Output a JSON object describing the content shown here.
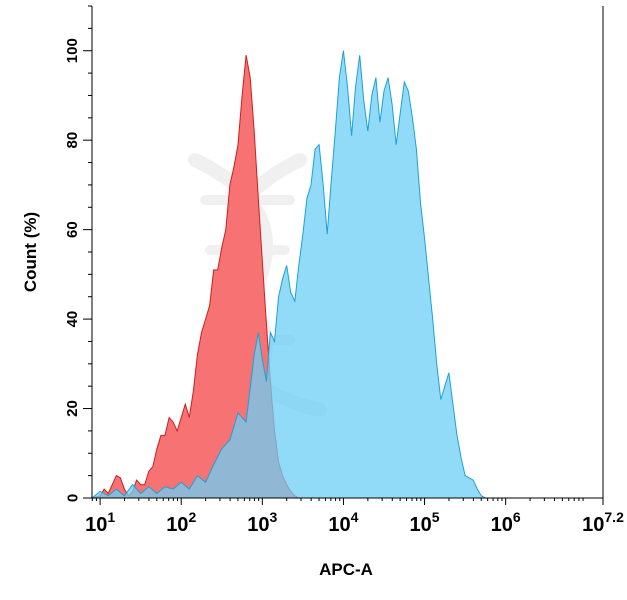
{
  "chart_data": {
    "type": "area",
    "title": "",
    "xlabel": "APC-A",
    "ylabel": "Count  (%)",
    "x_scale": "log10",
    "xlim": [
      0.9,
      7.2
    ],
    "ylim": [
      0,
      110
    ],
    "x_ticks": [
      {
        "exp": 1,
        "base": "10",
        "sup": "1"
      },
      {
        "exp": 2,
        "base": "10",
        "sup": "2"
      },
      {
        "exp": 3,
        "base": "10",
        "sup": "3"
      },
      {
        "exp": 4,
        "base": "10",
        "sup": "4"
      },
      {
        "exp": 5,
        "base": "10",
        "sup": "5"
      },
      {
        "exp": 6,
        "base": "10",
        "sup": "6"
      },
      {
        "exp": 7.2,
        "base": "10",
        "sup": "7.2"
      }
    ],
    "y_ticks": [
      "0",
      "20",
      "40",
      "60",
      "80",
      "100"
    ],
    "grid": false,
    "series": [
      {
        "fill": "#f76a6a",
        "stroke": "#cc1f1f",
        "points": [
          [
            0.9,
            0
          ],
          [
            1.0,
            0.5
          ],
          [
            1.05,
            2
          ],
          [
            1.1,
            1
          ],
          [
            1.15,
            3
          ],
          [
            1.2,
            5
          ],
          [
            1.25,
            4.5
          ],
          [
            1.3,
            2
          ],
          [
            1.35,
            0.5
          ],
          [
            1.4,
            1.5
          ],
          [
            1.45,
            4
          ],
          [
            1.5,
            3
          ],
          [
            1.55,
            3
          ],
          [
            1.6,
            6
          ],
          [
            1.65,
            7
          ],
          [
            1.7,
            11
          ],
          [
            1.75,
            14
          ],
          [
            1.8,
            14
          ],
          [
            1.85,
            18
          ],
          [
            1.9,
            17
          ],
          [
            1.95,
            15
          ],
          [
            2.0,
            18
          ],
          [
            2.05,
            21
          ],
          [
            2.1,
            18
          ],
          [
            2.15,
            24
          ],
          [
            2.2,
            32
          ],
          [
            2.25,
            37
          ],
          [
            2.3,
            40
          ],
          [
            2.35,
            43
          ],
          [
            2.4,
            51
          ],
          [
            2.45,
            51
          ],
          [
            2.5,
            56
          ],
          [
            2.55,
            60
          ],
          [
            2.6,
            70
          ],
          [
            2.65,
            74
          ],
          [
            2.7,
            79
          ],
          [
            2.75,
            90
          ],
          [
            2.8,
            99
          ],
          [
            2.85,
            94
          ],
          [
            2.9,
            82
          ],
          [
            2.95,
            67
          ],
          [
            3.0,
            53
          ],
          [
            3.05,
            39
          ],
          [
            3.1,
            26
          ],
          [
            3.15,
            15
          ],
          [
            3.2,
            8
          ],
          [
            3.25,
            5
          ],
          [
            3.3,
            3
          ],
          [
            3.35,
            1.5
          ],
          [
            3.4,
            0.5
          ],
          [
            3.45,
            0
          ]
        ]
      },
      {
        "fill": "#6dcff5",
        "stroke": "#1aa2d6",
        "points": [
          [
            0.9,
            0
          ],
          [
            1.0,
            1.5
          ],
          [
            1.1,
            0.5
          ],
          [
            1.2,
            2
          ],
          [
            1.3,
            0.5
          ],
          [
            1.4,
            3
          ],
          [
            1.5,
            1
          ],
          [
            1.6,
            2.5
          ],
          [
            1.7,
            1
          ],
          [
            1.8,
            2.5
          ],
          [
            1.9,
            2
          ],
          [
            2.0,
            3.5
          ],
          [
            2.1,
            2
          ],
          [
            2.2,
            5
          ],
          [
            2.3,
            3.5
          ],
          [
            2.4,
            7.5
          ],
          [
            2.5,
            11
          ],
          [
            2.6,
            13
          ],
          [
            2.7,
            19
          ],
          [
            2.8,
            17
          ],
          [
            2.9,
            32
          ],
          [
            2.95,
            37
          ],
          [
            3.0,
            31
          ],
          [
            3.05,
            26
          ],
          [
            3.1,
            37
          ],
          [
            3.15,
            35
          ],
          [
            3.2,
            45
          ],
          [
            3.25,
            49
          ],
          [
            3.3,
            52
          ],
          [
            3.35,
            46
          ],
          [
            3.4,
            44
          ],
          [
            3.45,
            52
          ],
          [
            3.5,
            59
          ],
          [
            3.55,
            67
          ],
          [
            3.6,
            70
          ],
          [
            3.65,
            78
          ],
          [
            3.7,
            79
          ],
          [
            3.75,
            70
          ],
          [
            3.8,
            59
          ],
          [
            3.85,
            71
          ],
          [
            3.9,
            82
          ],
          [
            3.95,
            94
          ],
          [
            4.0,
            100
          ],
          [
            4.05,
            92
          ],
          [
            4.1,
            81
          ],
          [
            4.15,
            92
          ],
          [
            4.2,
            99
          ],
          [
            4.25,
            89
          ],
          [
            4.3,
            82
          ],
          [
            4.35,
            90
          ],
          [
            4.4,
            94
          ],
          [
            4.45,
            84
          ],
          [
            4.5,
            91
          ],
          [
            4.55,
            94
          ],
          [
            4.6,
            88
          ],
          [
            4.65,
            79
          ],
          [
            4.7,
            86
          ],
          [
            4.75,
            93
          ],
          [
            4.8,
            91
          ],
          [
            4.85,
            85
          ],
          [
            4.9,
            78
          ],
          [
            4.95,
            66
          ],
          [
            5.0,
            58
          ],
          [
            5.05,
            49
          ],
          [
            5.1,
            40
          ],
          [
            5.15,
            30
          ],
          [
            5.2,
            22
          ],
          [
            5.25,
            25
          ],
          [
            5.3,
            28
          ],
          [
            5.35,
            21
          ],
          [
            5.4,
            14
          ],
          [
            5.45,
            9
          ],
          [
            5.5,
            5
          ],
          [
            5.55,
            4.5
          ],
          [
            5.6,
            4
          ],
          [
            5.65,
            2
          ],
          [
            5.7,
            0.5
          ],
          [
            5.75,
            0
          ]
        ]
      }
    ]
  }
}
